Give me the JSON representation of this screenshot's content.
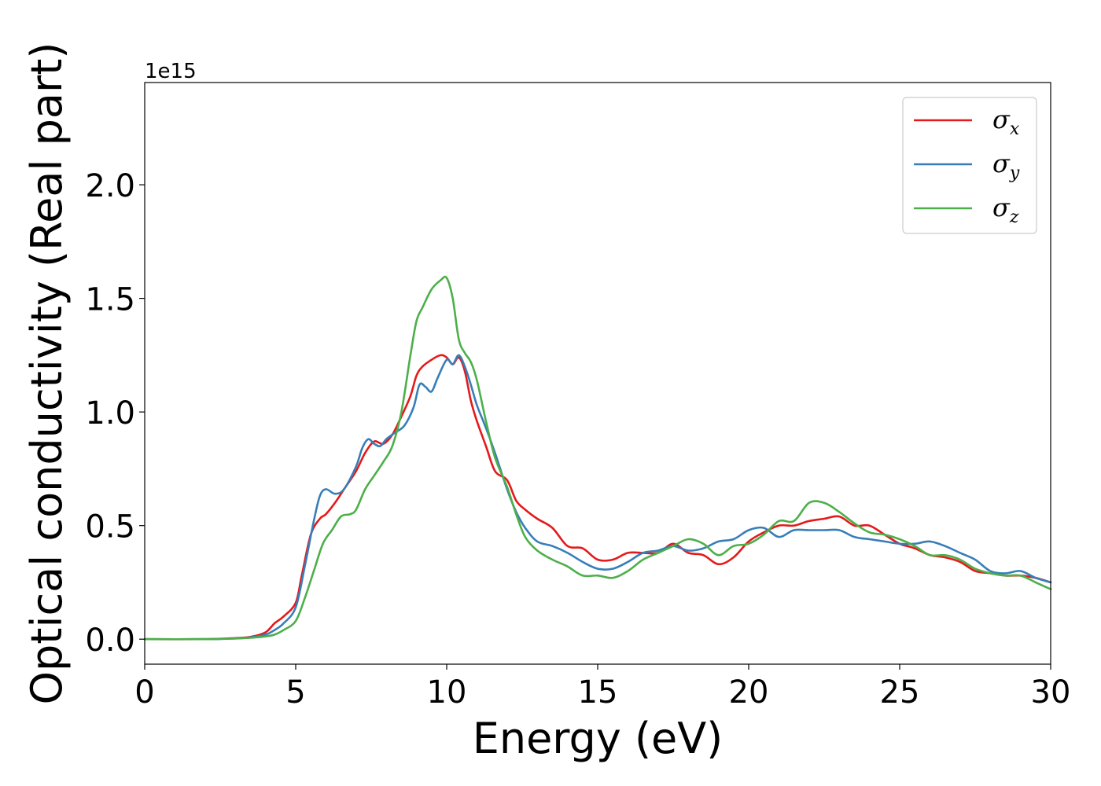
{
  "chart_data": {
    "type": "line",
    "title": "",
    "xlabel": "Energy (eV)",
    "ylabel": "Optical conductivity (Real part)",
    "y_offset_text": "1e15",
    "xlim": [
      0,
      30
    ],
    "ylim": [
      -0.11,
      2.45
    ],
    "xticks": [
      0,
      5,
      10,
      15,
      20,
      25,
      30
    ],
    "xtick_labels": [
      "0",
      "5",
      "10",
      "15",
      "20",
      "25",
      "30"
    ],
    "yticks": [
      0.0,
      0.5,
      1.0,
      1.5,
      2.0
    ],
    "ytick_labels": [
      "0.0",
      "0.5",
      "1.0",
      "1.5",
      "2.0"
    ],
    "grid": false,
    "legend_position": "top-right",
    "series": [
      {
        "name": "σx",
        "symbol": "σ",
        "subscript": "x",
        "color": "#e41a1c",
        "x": [
          0,
          2,
          3,
          3.5,
          4,
          4.3,
          4.6,
          5,
          5.2,
          5.5,
          5.8,
          6,
          6.3,
          6.6,
          7,
          7.3,
          7.6,
          7.9,
          8.2,
          8.5,
          8.8,
          9,
          9.2,
          9.5,
          9.8,
          10,
          10.2,
          10.4,
          10.6,
          10.8,
          11,
          11.3,
          11.6,
          12,
          12.3,
          12.6,
          13,
          13.5,
          14,
          14.5,
          15,
          15.5,
          16,
          16.5,
          17,
          17.5,
          18,
          18.5,
          19,
          19.5,
          20,
          20.5,
          21,
          21.5,
          22,
          22.5,
          23,
          23.5,
          24,
          24.5,
          25,
          25.5,
          26,
          26.5,
          27,
          27.5,
          28,
          28.5,
          29,
          29.5,
          30
        ],
        "y": [
          0,
          0,
          0.005,
          0.01,
          0.03,
          0.07,
          0.1,
          0.16,
          0.28,
          0.46,
          0.53,
          0.55,
          0.6,
          0.66,
          0.74,
          0.82,
          0.87,
          0.86,
          0.9,
          0.98,
          1.07,
          1.16,
          1.2,
          1.23,
          1.25,
          1.24,
          1.21,
          1.24,
          1.18,
          1.05,
          0.96,
          0.85,
          0.74,
          0.7,
          0.61,
          0.57,
          0.53,
          0.49,
          0.41,
          0.4,
          0.35,
          0.35,
          0.38,
          0.38,
          0.38,
          0.42,
          0.38,
          0.37,
          0.33,
          0.36,
          0.43,
          0.47,
          0.5,
          0.5,
          0.52,
          0.53,
          0.54,
          0.5,
          0.5,
          0.46,
          0.42,
          0.4,
          0.37,
          0.36,
          0.34,
          0.3,
          0.29,
          0.28,
          0.28,
          0.27,
          0.25
        ]
      },
      {
        "name": "σy",
        "symbol": "σ",
        "subscript": "y",
        "color": "#377eb8",
        "x": [
          0,
          2,
          3,
          3.5,
          4,
          4.3,
          4.6,
          5,
          5.3,
          5.6,
          5.8,
          6,
          6.3,
          6.6,
          7,
          7.2,
          7.4,
          7.6,
          7.8,
          8,
          8.3,
          8.6,
          8.9,
          9.1,
          9.3,
          9.5,
          9.7,
          10,
          10.2,
          10.4,
          10.6,
          10.8,
          11,
          11.3,
          11.6,
          12,
          12.3,
          12.6,
          13,
          13.5,
          14,
          14.5,
          15,
          15.5,
          16,
          16.5,
          17,
          17.5,
          18,
          18.5,
          19,
          19.5,
          20,
          20.5,
          21,
          21.5,
          22,
          22.5,
          23,
          23.5,
          24,
          24.5,
          25,
          25.5,
          26,
          26.5,
          27,
          27.5,
          28,
          28.5,
          29,
          29.5,
          30
        ],
        "y": [
          0,
          0,
          0.003,
          0.008,
          0.02,
          0.04,
          0.07,
          0.14,
          0.32,
          0.52,
          0.63,
          0.66,
          0.64,
          0.66,
          0.76,
          0.84,
          0.88,
          0.86,
          0.85,
          0.88,
          0.91,
          0.94,
          1.02,
          1.12,
          1.11,
          1.09,
          1.15,
          1.23,
          1.21,
          1.25,
          1.2,
          1.12,
          1.03,
          0.93,
          0.82,
          0.66,
          0.56,
          0.49,
          0.43,
          0.41,
          0.38,
          0.34,
          0.31,
          0.31,
          0.34,
          0.38,
          0.39,
          0.41,
          0.39,
          0.4,
          0.43,
          0.44,
          0.48,
          0.49,
          0.45,
          0.48,
          0.48,
          0.48,
          0.48,
          0.45,
          0.44,
          0.43,
          0.42,
          0.42,
          0.43,
          0.41,
          0.38,
          0.35,
          0.3,
          0.29,
          0.3,
          0.27,
          0.25
        ]
      },
      {
        "name": "σz",
        "symbol": "σ",
        "subscript": "z",
        "color": "#4daf4a",
        "x": [
          0,
          2,
          3,
          3.5,
          4,
          4.3,
          4.6,
          5,
          5.3,
          5.6,
          5.9,
          6.2,
          6.5,
          6.8,
          7,
          7.3,
          7.6,
          7.9,
          8.2,
          8.5,
          8.8,
          9,
          9.2,
          9.5,
          9.8,
          10,
          10.2,
          10.4,
          10.6,
          10.8,
          11,
          11.3,
          11.6,
          12,
          12.3,
          12.6,
          13,
          13.5,
          14,
          14.5,
          15,
          15.5,
          16,
          16.5,
          17,
          17.5,
          18,
          18.5,
          19,
          19.5,
          20,
          20.5,
          21,
          21.5,
          22,
          22.5,
          23,
          23.5,
          24,
          24.5,
          25,
          25.5,
          26,
          26.5,
          27,
          27.5,
          28,
          28.5,
          29,
          29.5,
          30
        ],
        "y": [
          0,
          0,
          0.003,
          0.006,
          0.012,
          0.02,
          0.04,
          0.08,
          0.18,
          0.3,
          0.42,
          0.48,
          0.54,
          0.55,
          0.57,
          0.66,
          0.72,
          0.78,
          0.85,
          1.0,
          1.25,
          1.4,
          1.46,
          1.54,
          1.58,
          1.59,
          1.5,
          1.32,
          1.26,
          1.22,
          1.14,
          0.96,
          0.8,
          0.67,
          0.55,
          0.45,
          0.39,
          0.35,
          0.32,
          0.28,
          0.28,
          0.27,
          0.3,
          0.35,
          0.38,
          0.41,
          0.44,
          0.42,
          0.37,
          0.41,
          0.42,
          0.46,
          0.52,
          0.52,
          0.6,
          0.6,
          0.56,
          0.51,
          0.47,
          0.46,
          0.44,
          0.41,
          0.37,
          0.37,
          0.35,
          0.31,
          0.29,
          0.28,
          0.28,
          0.25,
          0.22
        ]
      }
    ]
  }
}
